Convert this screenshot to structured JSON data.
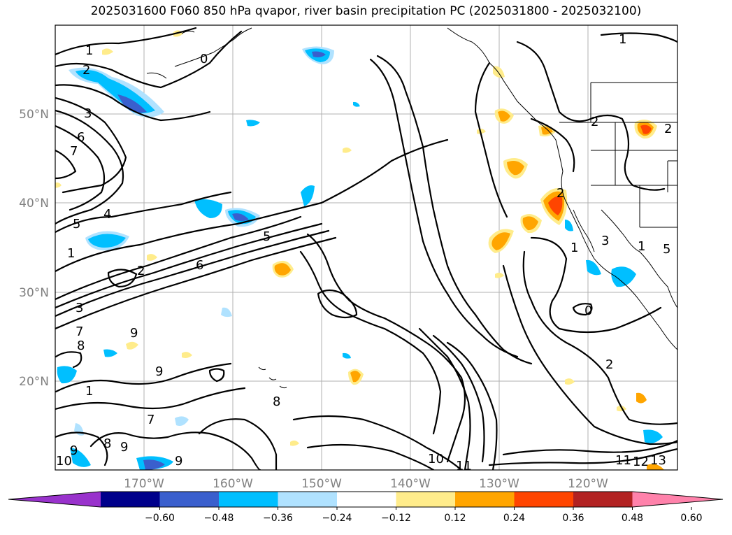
{
  "title": "2025031600 F060 850 hPa qvapor, river basin precipitation PC (2025031800 - 2025032100)",
  "map": {
    "lat_labels": [
      "50°N",
      "40°N",
      "30°N",
      "20°N"
    ],
    "lon_labels": [
      "170°W",
      "160°W",
      "150°W",
      "140°W",
      "130°W",
      "120°W"
    ]
  },
  "contour_labels": [
    "1",
    "2",
    "0",
    "3",
    "6",
    "7",
    "5",
    "4",
    "1",
    "2",
    "6",
    "5",
    "3",
    "7",
    "9",
    "8",
    "1",
    "9",
    "8",
    "7",
    "8",
    "9",
    "9",
    "10",
    "9",
    "10",
    "11",
    "11",
    "12",
    "13",
    "2",
    "3",
    "2",
    "1",
    "0",
    "2",
    "1",
    "1",
    "2",
    "5"
  ],
  "colorbar": {
    "ticks": [
      "−0.60",
      "−0.48",
      "−0.36",
      "−0.24",
      "−0.12",
      "0.12",
      "0.24",
      "0.36",
      "0.48",
      "0.60"
    ],
    "colors": [
      "#9932cc",
      "#00008b",
      "#3a5fcd",
      "#00bfff",
      "#b0e2ff",
      "#ffffff",
      "#ffec8b",
      "#ffa500",
      "#ff4500",
      "#b22222",
      "#ff82ab"
    ]
  }
}
